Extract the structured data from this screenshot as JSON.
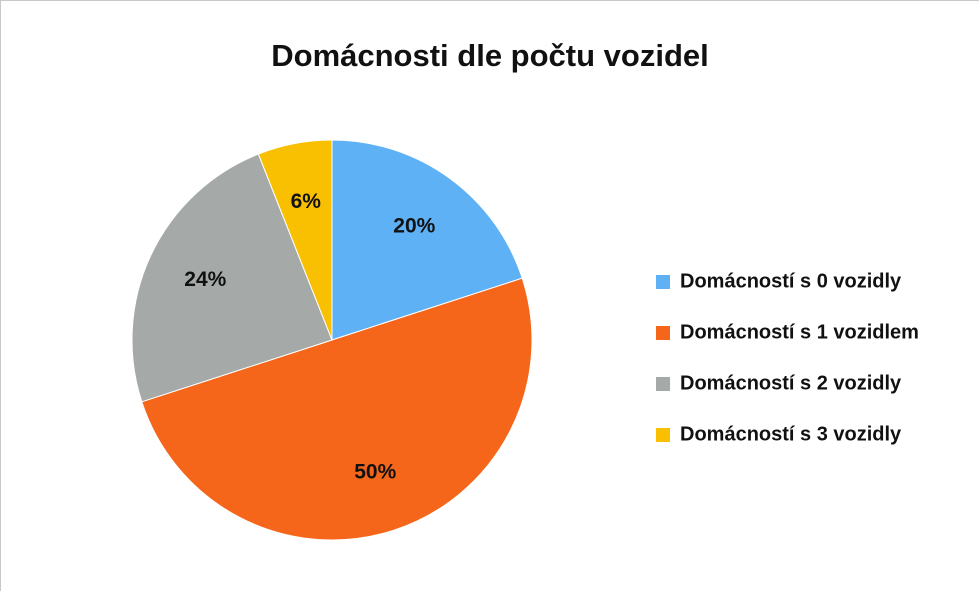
{
  "chart_data": {
    "type": "pie",
    "title": "Domácnosti dle počtu vozidel",
    "categories": [
      "Domácností s 0 vozidly",
      "Domácností s 1 vozidlem",
      "Domácností s 2 vozidly",
      "Domácností s 3 vozidly"
    ],
    "values": [
      20,
      50,
      24,
      6
    ],
    "value_labels": [
      "20%",
      "50%",
      "24%",
      "6%"
    ],
    "colors": [
      "#5eb1f5",
      "#f5661a",
      "#a5aaa8",
      "#f8c000"
    ],
    "legend": "right"
  }
}
